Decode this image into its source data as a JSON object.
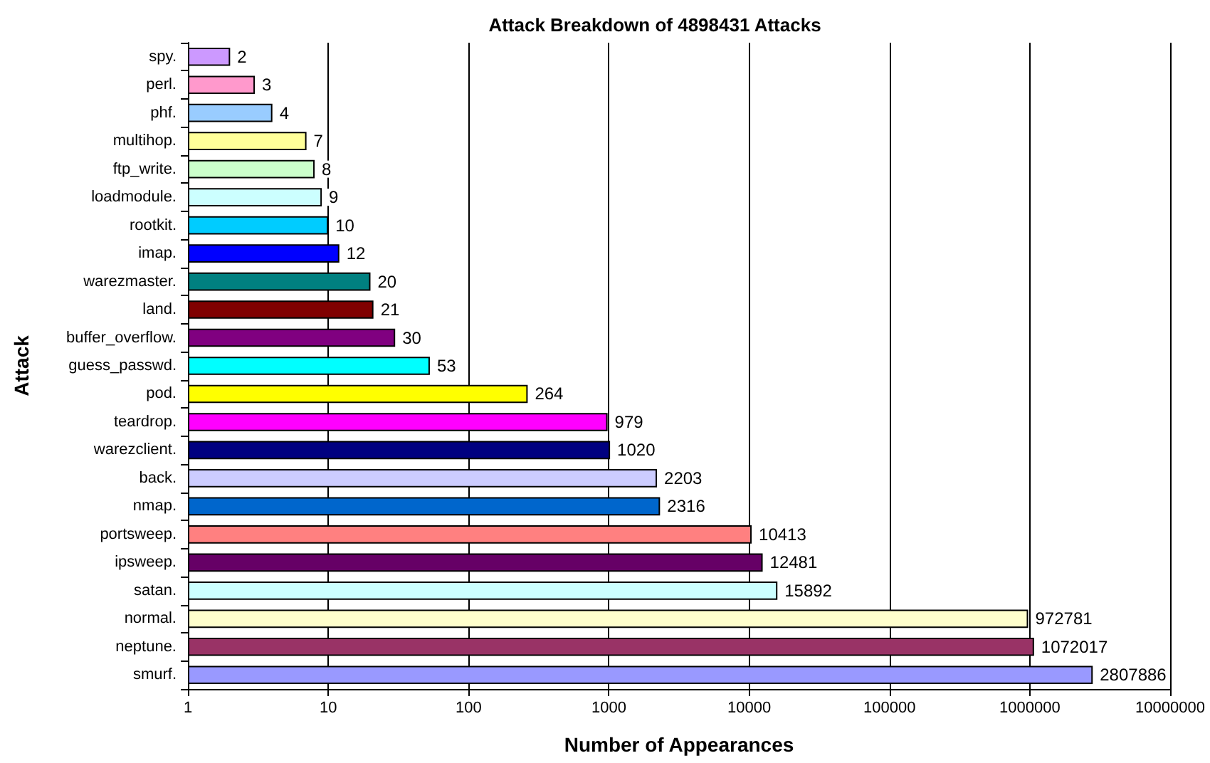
{
  "chart_data": {
    "type": "bar",
    "orientation": "horizontal",
    "title": "Attack Breakdown of 4898431 Attacks",
    "xlabel": "Number of Appearances",
    "ylabel": "Attack",
    "categories": [
      "spy.",
      "perl.",
      "phf.",
      "multihop.",
      "ftp_write.",
      "loadmodule.",
      "rootkit.",
      "imap.",
      "warezmaster.",
      "land.",
      "buffer_overflow.",
      "guess_passwd.",
      "pod.",
      "teardrop.",
      "warezclient.",
      "back.",
      "nmap.",
      "portsweep.",
      "ipsweep.",
      "satan.",
      "normal.",
      "neptune.",
      "smurf."
    ],
    "values": [
      2,
      3,
      4,
      7,
      8,
      9,
      10,
      12,
      20,
      21,
      30,
      53,
      264,
      979,
      1020,
      2203,
      2316,
      10413,
      12481,
      15892,
      972781,
      1072017,
      2807886
    ],
    "colors": [
      "#cc99ff",
      "#ff99cc",
      "#99ccff",
      "#ffff99",
      "#ccffcc",
      "#ccffff",
      "#00ccff",
      "#0000ff",
      "#008080",
      "#800000",
      "#800080",
      "#00ffff",
      "#ffff00",
      "#ff00ff",
      "#000080",
      "#ccccff",
      "#0066cc",
      "#ff8080",
      "#660066",
      "#ccffff",
      "#ffffcc",
      "#993366",
      "#9999ff"
    ],
    "log": "x",
    "xlim": [
      1,
      10000000
    ],
    "xticks": [
      1,
      10,
      100,
      1000,
      10000,
      100000,
      1000000,
      10000000
    ],
    "grid": "x",
    "data_labels": true
  }
}
